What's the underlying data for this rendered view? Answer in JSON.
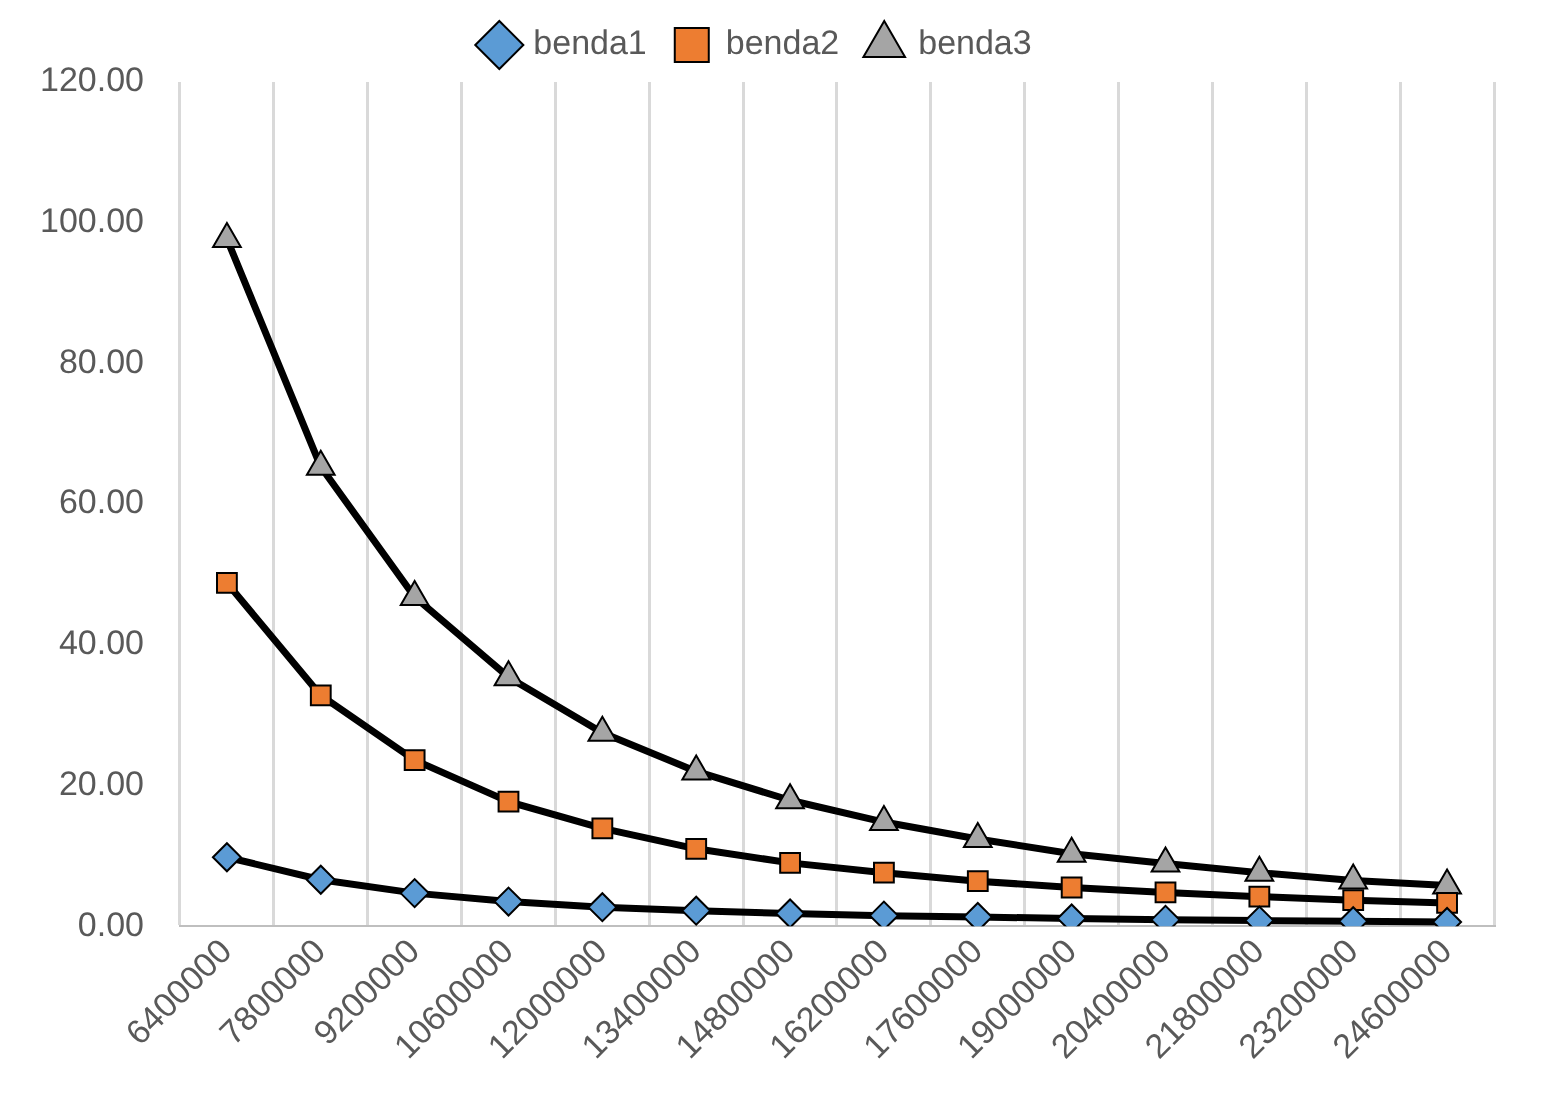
{
  "chart_data": {
    "type": "line",
    "categories": [
      "6400000",
      "7800000",
      "9200000",
      "10600000",
      "12000000",
      "13400000",
      "14800000",
      "16200000",
      "17600000",
      "19000000",
      "20400000",
      "21800000",
      "23200000",
      "24600000"
    ],
    "series": [
      {
        "name": "benda1",
        "color": "#5b9bd5",
        "marker": "diamond",
        "values": [
          9.8,
          6.6,
          4.7,
          3.5,
          2.7,
          2.2,
          1.8,
          1.5,
          1.3,
          1.1,
          0.9,
          0.8,
          0.7,
          0.6
        ]
      },
      {
        "name": "benda2",
        "color": "#ed7d31",
        "marker": "square",
        "values": [
          48.8,
          32.8,
          23.6,
          17.7,
          13.9,
          11.0,
          9.0,
          7.6,
          6.4,
          5.5,
          4.8,
          4.2,
          3.7,
          3.3
        ]
      },
      {
        "name": "benda3",
        "color": "#a5a5a5",
        "marker": "triangle",
        "values": [
          97.7,
          65.3,
          46.8,
          35.4,
          27.5,
          22.0,
          17.9,
          14.8,
          12.4,
          10.3,
          8.9,
          7.6,
          6.5,
          5.8
        ]
      }
    ],
    "ylim": [
      0,
      120
    ],
    "yticks": [
      {
        "value": 0,
        "label": "0.00"
      },
      {
        "value": 20,
        "label": "20.00"
      },
      {
        "value": 40,
        "label": "40.00"
      },
      {
        "value": 60,
        "label": "60.00"
      },
      {
        "value": 80,
        "label": "80.00"
      },
      {
        "value": 100,
        "label": "100.00"
      },
      {
        "value": 120,
        "label": "120.00"
      }
    ],
    "grid": "x",
    "legend": "top",
    "line_style": "solid"
  }
}
